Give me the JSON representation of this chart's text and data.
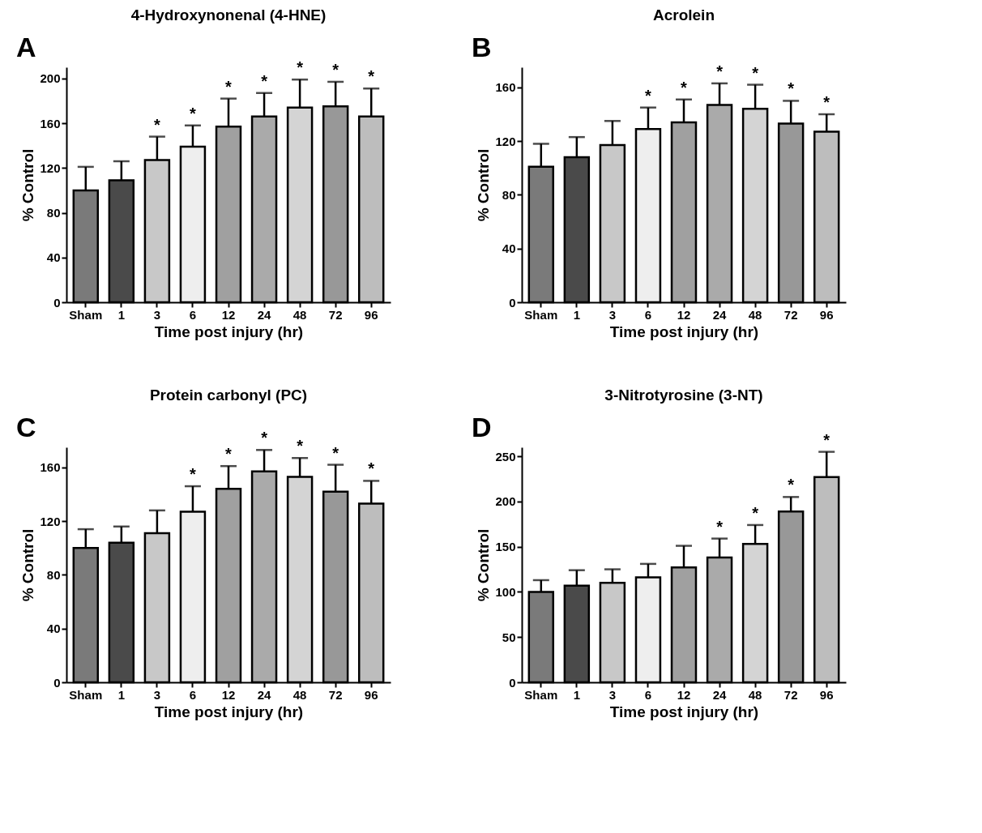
{
  "chart_data": [
    {
      "type": "bar",
      "title": "4-Hydroxynonenal (4-HNE)",
      "xlabel": "Time post injury (hr)",
      "ylabel": "% Control",
      "categories": [
        "Sham",
        "1",
        "3",
        "6",
        "12",
        "24",
        "48",
        "72",
        "96"
      ],
      "values": [
        100,
        109,
        127,
        139,
        157,
        166,
        174,
        175,
        166
      ],
      "errors": [
        21,
        17,
        21,
        19,
        25,
        21,
        25,
        22,
        25
      ],
      "colors": [
        "#7a7a7a",
        "#4a4a4a",
        "#c8c8c8",
        "#eeeeee",
        "#a0a0a0",
        "#aaaaaa",
        "#d4d4d4",
        "#989898",
        "#bdbdbd"
      ],
      "ylim": [
        0,
        210
      ],
      "yticks": [
        0,
        40,
        80,
        120,
        160,
        200
      ],
      "grid": false,
      "annotations": [
        "A",
        {
          "text": "*",
          "x": "3",
          "y": 148
        },
        {
          "text": "*",
          "x": "6",
          "y": 158
        },
        {
          "text": "*",
          "x": "12",
          "y": 182
        },
        {
          "text": "*",
          "x": "24",
          "y": 187
        },
        {
          "text": "*",
          "x": "48",
          "y": 199
        },
        {
          "text": "*",
          "x": "72",
          "y": 197
        },
        {
          "text": "*",
          "x": "96",
          "y": 191
        }
      ]
    },
    {
      "type": "bar",
      "title": "Acrolein",
      "xlabel": "Time post injury (hr)",
      "ylabel": "% Control",
      "categories": [
        "Sham",
        "1",
        "3",
        "6",
        "12",
        "24",
        "48",
        "72",
        "96"
      ],
      "values": [
        101,
        108,
        117,
        129,
        134,
        147,
        144,
        133,
        127
      ],
      "errors": [
        17,
        15,
        18,
        16,
        17,
        16,
        18,
        17,
        13
      ],
      "colors": [
        "#7a7a7a",
        "#4a4a4a",
        "#c8c8c8",
        "#eeeeee",
        "#a0a0a0",
        "#aaaaaa",
        "#d4d4d4",
        "#989898",
        "#bdbdbd"
      ],
      "ylim": [
        0,
        175
      ],
      "yticks": [
        0,
        40,
        80,
        120,
        160
      ],
      "grid": false,
      "annotations": [
        "B",
        {
          "text": "*",
          "x": "6",
          "y": 145
        },
        {
          "text": "*",
          "x": "12",
          "y": 151
        },
        {
          "text": "*",
          "x": "24",
          "y": 163
        },
        {
          "text": "*",
          "x": "48",
          "y": 162
        },
        {
          "text": "*",
          "x": "72",
          "y": 150
        },
        {
          "text": "*",
          "x": "96",
          "y": 140
        }
      ]
    },
    {
      "type": "bar",
      "title": "Protein carbonyl (PC)",
      "xlabel": "Time post injury (hr)",
      "ylabel": "% Control",
      "categories": [
        "Sham",
        "1",
        "3",
        "6",
        "12",
        "24",
        "48",
        "72",
        "96"
      ],
      "values": [
        100,
        104,
        111,
        127,
        144,
        157,
        153,
        142,
        133
      ],
      "errors": [
        14,
        12,
        17,
        19,
        17,
        16,
        14,
        20,
        17
      ],
      "colors": [
        "#7a7a7a",
        "#4a4a4a",
        "#c8c8c8",
        "#eeeeee",
        "#a0a0a0",
        "#aaaaaa",
        "#d4d4d4",
        "#989898",
        "#bdbdbd"
      ],
      "ylim": [
        0,
        175
      ],
      "yticks": [
        0,
        40,
        80,
        120,
        160
      ],
      "grid": false,
      "annotations": [
        "C",
        {
          "text": "*",
          "x": "6",
          "y": 146
        },
        {
          "text": "*",
          "x": "12",
          "y": 161
        },
        {
          "text": "*",
          "x": "24",
          "y": 173
        },
        {
          "text": "*",
          "x": "48",
          "y": 167
        },
        {
          "text": "*",
          "x": "72",
          "y": 162
        },
        {
          "text": "*",
          "x": "96",
          "y": 150
        }
      ]
    },
    {
      "type": "bar",
      "title": "3-Nitrotyrosine (3-NT)",
      "xlabel": "Time post injury (hr)",
      "ylabel": "% Control",
      "categories": [
        "Sham",
        "1",
        "3",
        "6",
        "12",
        "24",
        "48",
        "72",
        "96"
      ],
      "values": [
        100,
        107,
        110,
        116,
        127,
        138,
        153,
        189,
        227
      ],
      "errors": [
        13,
        17,
        15,
        15,
        24,
        21,
        21,
        16,
        28
      ],
      "colors": [
        "#7a7a7a",
        "#4a4a4a",
        "#c8c8c8",
        "#eeeeee",
        "#a0a0a0",
        "#aaaaaa",
        "#d4d4d4",
        "#989898",
        "#bdbdbd"
      ],
      "ylim": [
        0,
        260
      ],
      "yticks": [
        0,
        50,
        100,
        150,
        200,
        250
      ],
      "grid": false,
      "annotations": [
        "D",
        {
          "text": "*",
          "x": "24",
          "y": 159
        },
        {
          "text": "*",
          "x": "48",
          "y": 174
        },
        {
          "text": "*",
          "x": "72",
          "y": 205
        },
        {
          "text": "*",
          "x": "96",
          "y": 255
        }
      ]
    }
  ]
}
